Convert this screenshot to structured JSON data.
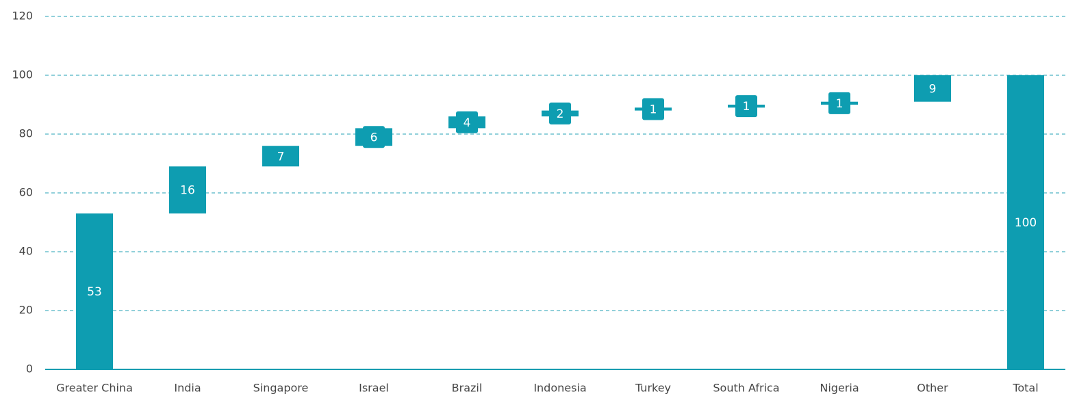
{
  "chart_data": {
    "type": "waterfall",
    "categories": [
      "Greater China",
      "India",
      "Singapore",
      "Israel",
      "Brazil",
      "Indonesia",
      "Turkey",
      "South Africa",
      "Nigeria",
      "Other",
      "Total"
    ],
    "values": [
      53,
      16,
      7,
      6,
      4,
      2,
      1,
      1,
      1,
      9,
      100
    ],
    "last_is_total": true,
    "color": "#0e9db1",
    "ylim": [
      0,
      120
    ],
    "yticks": [
      0,
      20,
      40,
      60,
      80,
      100,
      120
    ],
    "grid": true
  }
}
